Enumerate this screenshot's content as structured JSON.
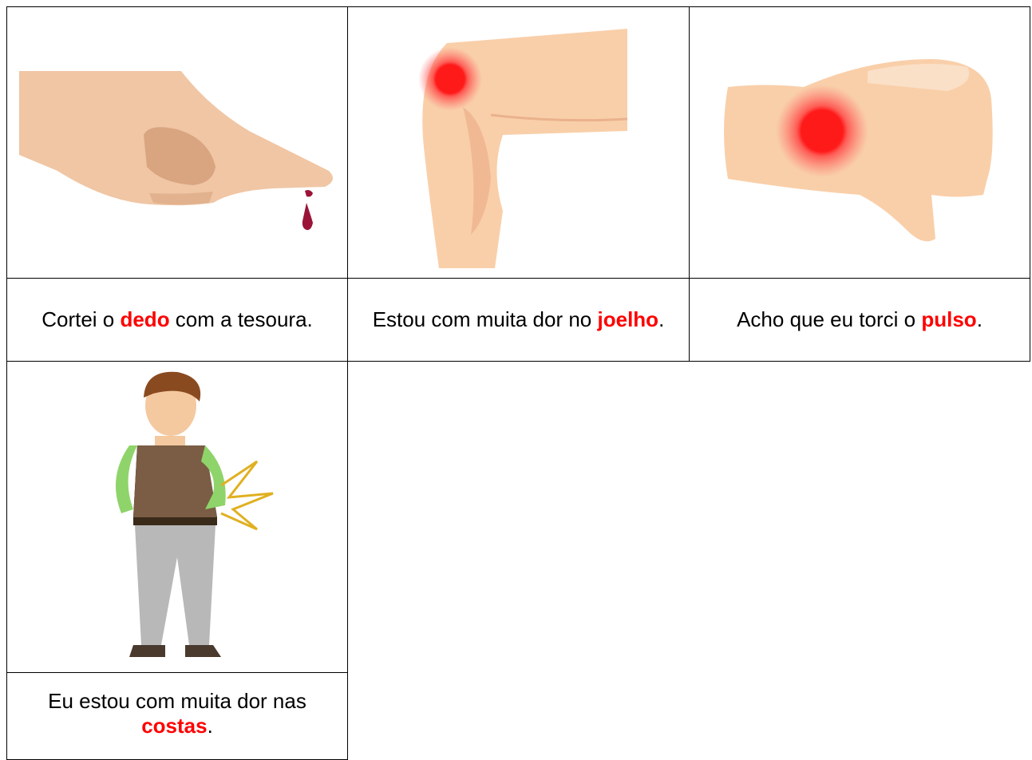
{
  "cards": [
    {
      "before": "Cortei o ",
      "keyword": "dedo",
      "after": " com a tesoura."
    },
    {
      "before": "Estou com muita dor no ",
      "keyword": "joelho",
      "after": "."
    },
    {
      "before": "Acho que eu torci o ",
      "keyword": "pulso",
      "after": "."
    },
    {
      "before": "Eu estou com muita dor nas ",
      "keyword": "costas",
      "after": "."
    }
  ]
}
